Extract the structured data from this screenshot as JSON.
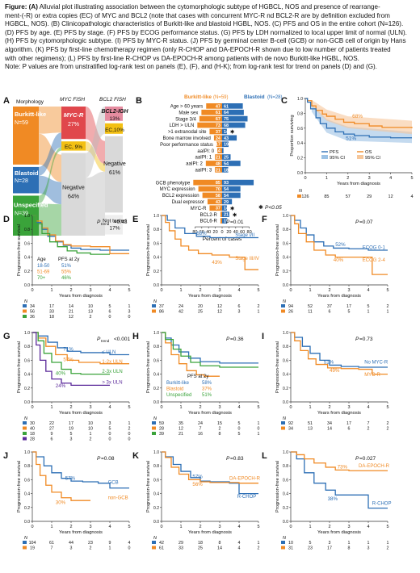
{
  "caption": {
    "lines": [
      "Figure: (A) Alluvial plot illustrating association between the cytomorphologic subtype of HGBCL, NOS and presence of rearrange-",
      "ment-(-R) or extra copies (EC) of MYC and BCL2 (note that cases with concurrent MYC-R nd BCL2-R are by definition excluded from",
      "HGBCL, NOS). (B) Clinicopathologic characteristics of Burkitt-like and blastoid HGBL, NOS. (C) PFS and OS in the entire cohort (N=126).",
      "(D) PFS by age. (E) PFS by stage. (F) PFS by ECOG performance status. (G) PFS by LDH normalized to local upper limit of normal (ULN).",
      "(H) PFS by cytomorphologic subtype. (I) PFS by MYC-R status. (J) PFS by germinal center B-cell (GCB) or non-GCB cell of origin by Hans",
      "algorithm. (K) PFS by first-line chemotherapy regimen (only R-CHOP and DA-EPOCH-R shown due to low number of patients treated",
      "with other regimens); (L) PFS by first-line R-CHOP vs DA-EPOCH-R among patients with de novo Burkitt-like HGBL, NOS.",
      "Note: P values are from unstratified log-rank test on panels (E), (F), and (H-K); from log-rank test for trend on panels (D) and (G)."
    ]
  },
  "panelA": {
    "letter": "A",
    "morph_title": "Morphology",
    "myc_title": "MYC FISH",
    "bcl2_title": "BCL2 FISH",
    "burkitt": "Burkitt-like",
    "burkitt_n": "N=59",
    "blastoid": "Blastoid",
    "blastoid_n": "N=28",
    "unspecified": "Unspecified",
    "unspecified_n": "N=39",
    "mycr": "MYC-R",
    "mycr_pct": "27%",
    "ec9": "EC, 9%",
    "neg": "Negative",
    "neg_pct": "64%",
    "bcl2igh": "BCL2-IGH",
    "bcl2igh_pct": "13%",
    "ec10": "EC,10%",
    "neg2": "Negative",
    "neg2_pct": "61%",
    "nottested": "Not tested",
    "nottested_pct": "17%",
    "colors": {
      "burkitt": "#f08a24",
      "blastoid": "#2d6fb5",
      "unspecified": "#3aa33a",
      "mycr": "#e0474c",
      "ec": "#f3c013",
      "neg": "#d9d9d9",
      "bcl2": "#e58ca0"
    }
  },
  "panelB": {
    "letter": "B",
    "legend_burkitt": "Burkitt-like",
    "legend_burkitt_n": "(N=59)",
    "legend_blastoid": "Blastoid",
    "legend_blastoid_n": "(N=28)",
    "xlabel": "Percent of cases",
    "ticks": [
      "80",
      "60",
      "40",
      "20",
      "0",
      "20",
      "40",
      "60",
      "80"
    ],
    "sig_note": "P<0.05",
    "rows": [
      {
        "label": "Age > 60 years",
        "left": 47,
        "right": 61
      },
      {
        "label": "Male sex",
        "left": 61,
        "right": 64
      },
      {
        "label": "Stage 3/4",
        "left": 67,
        "right": 75
      },
      {
        "label": "LDH > ULN",
        "left": 73,
        "right": 68
      },
      {
        "label": ">1 extranodal site",
        "left": 37,
        "right": 14,
        "star": true
      },
      {
        "label": "Bone marrow involved",
        "left": 24,
        "right": 43
      },
      {
        "label": "Poor performance status",
        "left": 17,
        "right": 19
      },
      {
        "label": "aaIPI: 0",
        "left": 14,
        "right": 4
      },
      {
        "label": "aaIPI: 1",
        "left": 21,
        "right": 25
      },
      {
        "label": "aaIPI: 2",
        "left": 48,
        "right": 54
      },
      {
        "label": "aaIPI: 3",
        "left": 21,
        "right": 18
      },
      {
        "label": "",
        "left": 0,
        "right": 0,
        "gap": true
      },
      {
        "label": "GCB phenotype",
        "left": 85,
        "right": 93
      },
      {
        "label": "MYC expression",
        "left": 70,
        "right": 54
      },
      {
        "label": "BCL2 expression",
        "left": 58,
        "right": 54
      },
      {
        "label": "Dual expressor",
        "left": 43,
        "right": 29
      },
      {
        "label": "MYC-R",
        "left": 37,
        "right": 14,
        "star": true
      },
      {
        "label": "BCL2-R",
        "left": 5,
        "right": 21,
        "star": true
      },
      {
        "label": "BCL6-R",
        "left": 5,
        "right": 15
      }
    ]
  },
  "panelC": {
    "letter": "C",
    "ylabel": "Proportion surviving",
    "xlabel": "Years from diagnosis",
    "pct_os": "68%",
    "pct_pfs": "51%",
    "legend": [
      "PFS",
      "95% CI",
      "OS",
      "95% CI"
    ],
    "risk_n": "N",
    "risk": [
      "126",
      "85",
      "57",
      "29",
      "12",
      "4"
    ]
  },
  "panels": [
    {
      "key": "D",
      "letter": "D",
      "p": "P",
      "psub": "trend",
      "pval": "=0.43",
      "legend_title": "Age",
      "legend_title2": "PFS at 2y",
      "groups": [
        {
          "name": "18-50",
          "pct": "51%",
          "color": "#2d6fb5"
        },
        {
          "name": "51-69",
          "pct": "55%",
          "color": "#f08a24"
        },
        {
          "name": "70+",
          "pct": "46%",
          "color": "#3aa33a"
        }
      ],
      "risk": [
        [
          "34",
          "17",
          "14",
          "10",
          "5",
          "1"
        ],
        [
          "56",
          "33",
          "21",
          "13",
          "6",
          "3"
        ],
        [
          "36",
          "18",
          "12",
          "2",
          "0",
          "0"
        ]
      ]
    },
    {
      "key": "E",
      "letter": "E",
      "p": "P",
      "psub": "",
      "pval": "=0.01",
      "groups": [
        {
          "name": "Stage I/II",
          "pct": "68%",
          "color": "#2d6fb5"
        },
        {
          "name": "Stage III/IV",
          "pct": "43%",
          "color": "#f08a24"
        }
      ],
      "risk": [
        [
          "37",
          "24",
          "20",
          "12",
          "6",
          "2"
        ],
        [
          "86",
          "42",
          "25",
          "12",
          "3",
          "1"
        ]
      ]
    },
    {
      "key": "F",
      "letter": "F",
      "p": "P",
      "psub": "",
      "pval": "=0.07",
      "groups": [
        {
          "name": "ECOG 0-1",
          "pct": "52%",
          "color": "#2d6fb5"
        },
        {
          "name": "ECOG 2-4",
          "pct": "40%",
          "color": "#f08a24"
        }
      ],
      "risk": [
        [
          "94",
          "52",
          "37",
          "17",
          "5",
          "2"
        ],
        [
          "26",
          "11",
          "6",
          "5",
          "1",
          "1"
        ]
      ]
    },
    {
      "key": "G",
      "letter": "G",
      "p": "P",
      "psub": "trend",
      "pval": "<0.001",
      "groups": [
        {
          "name": "≤ ULN",
          "pct": "71%",
          "color": "#2d6fb5"
        },
        {
          "name": "1-2x ULN",
          "pct": "57%",
          "color": "#f08a24"
        },
        {
          "name": "2-3x ULN",
          "pct": "40%",
          "color": "#3aa33a"
        },
        {
          "name": "> 3x ULN",
          "pct": "24%",
          "color": "#5b2a9a"
        }
      ],
      "risk": [
        [
          "30",
          "22",
          "17",
          "10",
          "3",
          "1"
        ],
        [
          "40",
          "27",
          "19",
          "10",
          "5",
          "2"
        ],
        [
          "18",
          "9",
          "5",
          "1",
          "0",
          "0"
        ],
        [
          "28",
          "6",
          "3",
          "2",
          "0",
          "0"
        ]
      ]
    },
    {
      "key": "H",
      "letter": "H",
      "p": "P",
      "psub": "",
      "pval": "=0.36",
      "legend_title2": "PFS at 2y",
      "groups": [
        {
          "name": "Burkitt-like",
          "pct": "58%",
          "color": "#2d6fb5"
        },
        {
          "name": "Blastoid",
          "pct": "37%",
          "color": "#f08a24"
        },
        {
          "name": "Unspecified",
          "pct": "51%",
          "color": "#3aa33a"
        }
      ],
      "risk": [
        [
          "59",
          "35",
          "24",
          "15",
          "5",
          "1"
        ],
        [
          "28",
          "12",
          "7",
          "2",
          "0",
          "0"
        ],
        [
          "39",
          "21",
          "16",
          "8",
          "5",
          "1"
        ]
      ]
    },
    {
      "key": "I",
      "letter": "I",
      "p": "P",
      "psub": "",
      "pval": "=0.73",
      "groups": [
        {
          "name": "No MYC-R",
          "pct": "51%",
          "color": "#2d6fb5"
        },
        {
          "name": "MYC-R",
          "pct": "49%",
          "color": "#f08a24"
        }
      ],
      "risk": [
        [
          "92",
          "51",
          "34",
          "17",
          "7",
          "2"
        ],
        [
          "34",
          "13",
          "14",
          "6",
          "2",
          "2"
        ]
      ]
    },
    {
      "key": "J",
      "letter": "J",
      "p": "P",
      "psub": "",
      "pval": "=0.08",
      "groups": [
        {
          "name": "GCB",
          "pct": "57%",
          "color": "#2d6fb5"
        },
        {
          "name": "non-GCB",
          "pct": "30%",
          "color": "#f08a24"
        }
      ],
      "risk": [
        [
          "104",
          "61",
          "44",
          "23",
          "9",
          "4"
        ],
        [
          "19",
          "7",
          "3",
          "2",
          "1",
          "0"
        ]
      ]
    },
    {
      "key": "K",
      "letter": "K",
      "p": "P",
      "psub": "",
      "pval": "=0.83",
      "groups": [
        {
          "name": "R-CHOP",
          "pct": "57%",
          "color": "#2d6fb5"
        },
        {
          "name": "DA-EPOCH-R",
          "pct": "56%",
          "color": "#f08a24"
        }
      ],
      "risk": [
        [
          "42",
          "29",
          "18",
          "8",
          "4",
          "1"
        ],
        [
          "61",
          "33",
          "25",
          "14",
          "4",
          "2"
        ]
      ]
    },
    {
      "key": "L",
      "letter": "L",
      "p": "P",
      "psub": "",
      "pval": "=0.027",
      "groups": [
        {
          "name": "R-CHOP",
          "pct": "38%",
          "color": "#2d6fb5"
        },
        {
          "name": "DA-EPOCH-R",
          "pct": "73%",
          "color": "#f08a24"
        }
      ],
      "risk": [
        [
          "10",
          "5",
          "3",
          "1",
          "1",
          "1"
        ],
        [
          "31",
          "23",
          "17",
          "8",
          "3",
          "2"
        ]
      ]
    }
  ],
  "km_common": {
    "ylabel": "Progression-free survival",
    "xlabel": "Years from diagnosis",
    "xticks": [
      "0",
      "1",
      "2",
      "3",
      "4",
      "5"
    ],
    "yticks": [
      "0.0",
      "0.2",
      "0.4",
      "0.6",
      "0.8",
      "1.0"
    ],
    "risk_n": "N"
  },
  "chart_data": [
    {
      "type": "bar",
      "title": "B",
      "orientation": "horizontal",
      "xlabel": "Percent of cases",
      "categories": [
        "Age > 60 years",
        "Male sex",
        "Stage 3/4",
        "LDH > ULN",
        ">1 extranodal site",
        "Bone marrow involved",
        "Poor performance status",
        "aaIPI: 0",
        "aaIPI: 1",
        "aaIPI: 2",
        "aaIPI: 3",
        "GCB phenotype",
        "MYC expression",
        "BCL2 expression",
        "Dual expressor",
        "MYC-R",
        "BCL2-R",
        "BCL6-R"
      ],
      "series": [
        {
          "name": "Burkitt-like",
          "values": [
            47,
            61,
            67,
            73,
            37,
            24,
            17,
            14,
            21,
            48,
            21,
            85,
            70,
            58,
            43,
            37,
            5,
            5
          ]
        },
        {
          "name": "Blastoid",
          "values": [
            61,
            64,
            75,
            68,
            14,
            43,
            19,
            4,
            25,
            54,
            18,
            93,
            54,
            54,
            29,
            14,
            21,
            15
          ]
        }
      ]
    },
    {
      "type": "line",
      "title": "C",
      "ylabel": "Proportion surviving",
      "xlabel": "Years from diagnosis",
      "x": [
        0,
        1,
        2,
        3,
        4,
        5
      ],
      "series": [
        {
          "name": "PFS",
          "values": [
            1.0,
            0.62,
            0.51,
            0.48,
            0.47,
            0.47
          ]
        },
        {
          "name": "OS",
          "values": [
            1.0,
            0.78,
            0.68,
            0.63,
            0.6,
            0.6
          ]
        }
      ]
    }
  ]
}
